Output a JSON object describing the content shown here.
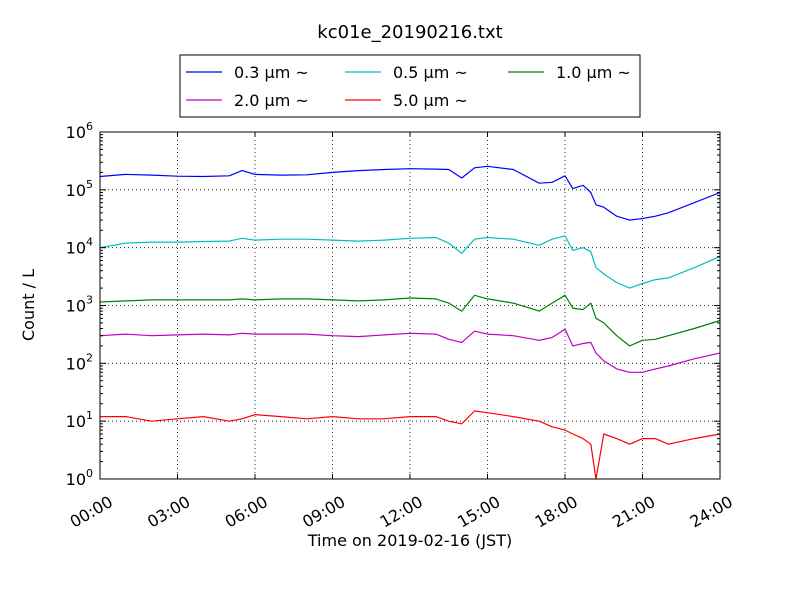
{
  "chart_data": {
    "type": "line",
    "title": "kc01e_20190216.txt",
    "xlabel": "Time on 2019-02-16 (JST)",
    "ylabel": "Count / L",
    "x_range_hours": [
      0,
      24
    ],
    "y_scale": "log",
    "ylim": [
      1,
      1000000
    ],
    "grid": true,
    "legend_position": "top",
    "x_ticks": [
      {
        "hour": 0,
        "label": "00:00"
      },
      {
        "hour": 3,
        "label": "03:00"
      },
      {
        "hour": 6,
        "label": "06:00"
      },
      {
        "hour": 9,
        "label": "09:00"
      },
      {
        "hour": 12,
        "label": "12:00"
      },
      {
        "hour": 15,
        "label": "15:00"
      },
      {
        "hour": 18,
        "label": "18:00"
      },
      {
        "hour": 21,
        "label": "21:00"
      },
      {
        "hour": 24,
        "label": "24:00"
      }
    ],
    "y_ticks": [
      {
        "value": 1,
        "base": "10",
        "exp": "0"
      },
      {
        "value": 10,
        "base": "10",
        "exp": "1"
      },
      {
        "value": 100,
        "base": "10",
        "exp": "2"
      },
      {
        "value": 1000,
        "base": "10",
        "exp": "3"
      },
      {
        "value": 10000,
        "base": "10",
        "exp": "4"
      },
      {
        "value": 100000,
        "base": "10",
        "exp": "5"
      },
      {
        "value": 1000000,
        "base": "10",
        "exp": "6"
      }
    ],
    "x_hours": [
      0,
      1,
      2,
      3,
      4,
      5,
      5.5,
      6,
      7,
      8,
      9,
      10,
      11,
      12,
      13,
      13.5,
      14,
      14.5,
      15,
      16,
      17,
      17.5,
      18,
      18.3,
      18.7,
      19,
      19.2,
      19.5,
      20,
      20.5,
      21,
      21.5,
      22,
      23,
      24
    ],
    "series": [
      {
        "name": "0.3 μm ~",
        "color": "#0000ff",
        "values": [
          170000,
          185000,
          180000,
          172000,
          170000,
          175000,
          215000,
          185000,
          180000,
          182000,
          200000,
          215000,
          225000,
          232000,
          228000,
          225000,
          160000,
          240000,
          255000,
          225000,
          130000,
          135000,
          175000,
          105000,
          120000,
          90000,
          55000,
          50000,
          35000,
          30000,
          32000,
          35000,
          40000,
          60000,
          90000
        ]
      },
      {
        "name": "0.5 μm ~",
        "color": "#00bfbf",
        "values": [
          10000,
          12000,
          12500,
          12500,
          12800,
          13000,
          14500,
          13500,
          14000,
          14000,
          13500,
          13000,
          13500,
          14500,
          15000,
          12000,
          8000,
          14000,
          15000,
          14000,
          11000,
          14000,
          16000,
          9000,
          10000,
          8500,
          4500,
          3500,
          2500,
          2000,
          2400,
          2800,
          3000,
          4500,
          7000
        ]
      },
      {
        "name": "1.0 μm ~",
        "color": "#008000",
        "values": [
          1150,
          1200,
          1250,
          1250,
          1250,
          1250,
          1300,
          1250,
          1300,
          1300,
          1250,
          1200,
          1250,
          1350,
          1300,
          1100,
          800,
          1500,
          1300,
          1100,
          800,
          1100,
          1500,
          900,
          850,
          1100,
          600,
          500,
          300,
          200,
          250,
          260,
          300,
          400,
          550
        ]
      },
      {
        "name": "2.0 μm ~",
        "color": "#bf00bf",
        "values": [
          300,
          320,
          300,
          310,
          320,
          310,
          330,
          320,
          320,
          320,
          300,
          290,
          310,
          330,
          320,
          260,
          230,
          360,
          320,
          300,
          250,
          280,
          390,
          200,
          220,
          230,
          150,
          110,
          80,
          70,
          70,
          80,
          90,
          120,
          150
        ]
      },
      {
        "name": "5.0 μm ~",
        "color": "#ff0000",
        "values": [
          12,
          12,
          10,
          11,
          12,
          10,
          11,
          13,
          12,
          11,
          12,
          11,
          11,
          12,
          12,
          10,
          9,
          15,
          14,
          12,
          10,
          8,
          7,
          6,
          5,
          4,
          1,
          6,
          5,
          4,
          5,
          5,
          4,
          5,
          6
        ]
      }
    ]
  }
}
